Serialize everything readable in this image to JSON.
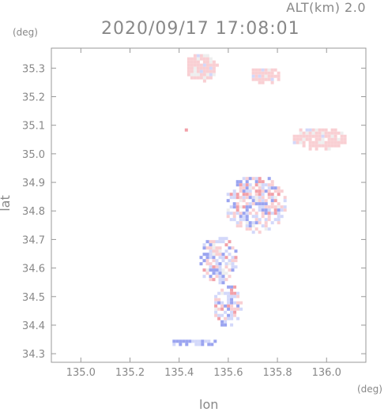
{
  "header": {
    "altitude_label": "ALT(km)  2.0",
    "timestamp": "2020/09/17 17:08:01"
  },
  "axes": {
    "x_unit": "(deg)",
    "y_unit": "(deg)",
    "x_title": "lon",
    "y_title": "lat"
  },
  "chart_data": {
    "type": "heatmap",
    "x_range": [
      134.88,
      136.16
    ],
    "y_range": [
      34.27,
      35.37
    ],
    "x_ticks": [
      {
        "value": 135.0,
        "label": "135.0"
      },
      {
        "value": 135.2,
        "label": "135.2"
      },
      {
        "value": 135.4,
        "label": "135.4"
      },
      {
        "value": 135.6,
        "label": "135.6"
      },
      {
        "value": 135.8,
        "label": "135.8"
      },
      {
        "value": 136.0,
        "label": "136.0"
      }
    ],
    "y_ticks": [
      {
        "value": 34.3,
        "label": "34.3"
      },
      {
        "value": 34.4,
        "label": "34.4"
      },
      {
        "value": 34.5,
        "label": "34.5"
      },
      {
        "value": 34.6,
        "label": "34.6"
      },
      {
        "value": 34.7,
        "label": "34.7"
      },
      {
        "value": 34.8,
        "label": "34.8"
      },
      {
        "value": 34.9,
        "label": "34.9"
      },
      {
        "value": 35.0,
        "label": "35.0"
      },
      {
        "value": 35.1,
        "label": "35.1"
      },
      {
        "value": 35.2,
        "label": "35.2"
      },
      {
        "value": 35.3,
        "label": "35.3"
      }
    ],
    "grid": false,
    "colors": {
      "positive": "#f2a0a8",
      "positive_light": "#f9cfd3",
      "negative": "#9aa4f0",
      "negative_light": "#d3d8fa",
      "neutral": "#eeeeee",
      "frame": "#999999"
    },
    "regions": [
      {
        "name": "north-cluster-a",
        "lon": [
          135.42,
          135.56
        ],
        "lat": [
          35.26,
          35.36
        ],
        "tone": "positive_light"
      },
      {
        "name": "north-cluster-b",
        "lon": [
          135.67,
          135.81
        ],
        "lat": [
          35.25,
          35.31
        ],
        "tone": "positive_light"
      },
      {
        "name": "east-cluster",
        "lon": [
          135.85,
          136.08
        ],
        "lat": [
          35.02,
          35.1
        ],
        "tone": "positive_light"
      },
      {
        "name": "small-cell-west",
        "lon": [
          135.41,
          135.44
        ],
        "lat": [
          35.08,
          35.1
        ],
        "tone": "positive"
      },
      {
        "name": "central-north-patches",
        "lon": [
          135.58,
          135.83
        ],
        "lat": [
          34.73,
          34.93
        ],
        "tone": "mixed"
      },
      {
        "name": "central-core",
        "lon": [
          135.47,
          135.63
        ],
        "lat": [
          34.55,
          34.72
        ],
        "tone": "mixed"
      },
      {
        "name": "south-core",
        "lon": [
          135.53,
          135.65
        ],
        "lat": [
          34.4,
          34.55
        ],
        "tone": "mixed"
      },
      {
        "name": "southwest-line",
        "lon": [
          135.36,
          135.55
        ],
        "lat": [
          34.33,
          34.36
        ],
        "tone": "negative"
      }
    ]
  }
}
